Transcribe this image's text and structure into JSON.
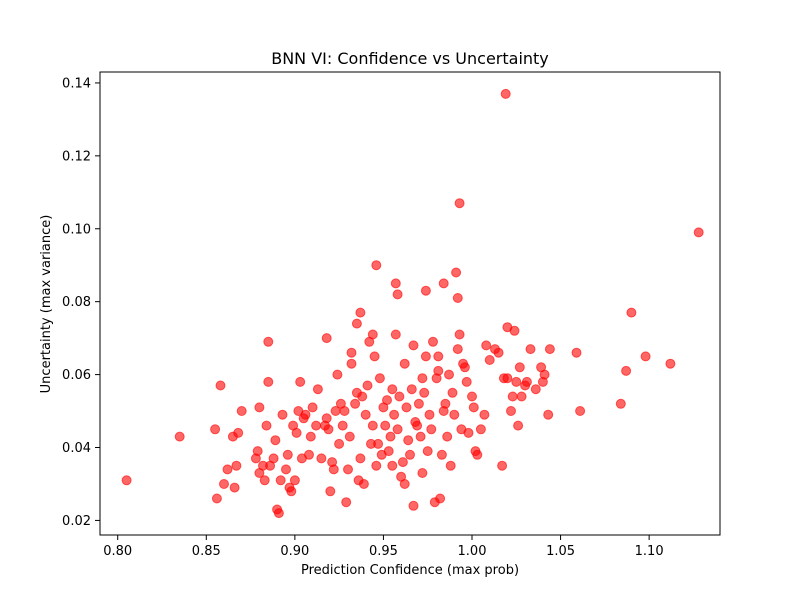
{
  "chart_data": {
    "type": "scatter",
    "title": "BNN VI: Confidence vs Uncertainty",
    "xlabel": "Prediction Confidence (max prob)",
    "ylabel": "Uncertainty (max variance)",
    "xlim": [
      0.79,
      1.14
    ],
    "ylim": [
      0.016,
      0.143
    ],
    "xticks": [
      0.8,
      0.85,
      0.9,
      0.95,
      1.0,
      1.05,
      1.1
    ],
    "xtick_labels": [
      "0.80",
      "0.85",
      "0.90",
      "0.95",
      "1.00",
      "1.05",
      "1.10"
    ],
    "yticks": [
      0.02,
      0.04,
      0.06,
      0.08,
      0.1,
      0.12,
      0.14
    ],
    "ytick_labels": [
      "0.02",
      "0.04",
      "0.06",
      "0.08",
      "0.10",
      "0.12",
      "0.14"
    ],
    "grid": false,
    "marker_color": "#ff0000",
    "marker_alpha": 0.6,
    "points": [
      [
        0.805,
        0.031
      ],
      [
        0.835,
        0.043
      ],
      [
        0.855,
        0.045
      ],
      [
        0.856,
        0.026
      ],
      [
        0.858,
        0.057
      ],
      [
        0.86,
        0.03
      ],
      [
        0.862,
        0.034
      ],
      [
        0.865,
        0.043
      ],
      [
        0.866,
        0.029
      ],
      [
        0.867,
        0.035
      ],
      [
        0.868,
        0.044
      ],
      [
        0.87,
        0.05
      ],
      [
        0.878,
        0.037
      ],
      [
        0.879,
        0.039
      ],
      [
        0.88,
        0.033
      ],
      [
        0.88,
        0.051
      ],
      [
        0.882,
        0.035
      ],
      [
        0.883,
        0.031
      ],
      [
        0.884,
        0.046
      ],
      [
        0.885,
        0.069
      ],
      [
        0.885,
        0.058
      ],
      [
        0.886,
        0.035
      ],
      [
        0.888,
        0.037
      ],
      [
        0.889,
        0.042
      ],
      [
        0.89,
        0.023
      ],
      [
        0.891,
        0.022
      ],
      [
        0.892,
        0.031
      ],
      [
        0.893,
        0.049
      ],
      [
        0.895,
        0.034
      ],
      [
        0.896,
        0.038
      ],
      [
        0.897,
        0.029
      ],
      [
        0.898,
        0.028
      ],
      [
        0.899,
        0.046
      ],
      [
        0.9,
        0.031
      ],
      [
        0.901,
        0.044
      ],
      [
        0.902,
        0.05
      ],
      [
        0.903,
        0.058
      ],
      [
        0.904,
        0.037
      ],
      [
        0.905,
        0.048
      ],
      [
        0.906,
        0.049
      ],
      [
        0.908,
        0.038
      ],
      [
        0.909,
        0.043
      ],
      [
        0.91,
        0.051
      ],
      [
        0.912,
        0.046
      ],
      [
        0.913,
        0.056
      ],
      [
        0.915,
        0.037
      ],
      [
        0.917,
        0.046
      ],
      [
        0.918,
        0.07
      ],
      [
        0.918,
        0.048
      ],
      [
        0.919,
        0.045
      ],
      [
        0.92,
        0.028
      ],
      [
        0.921,
        0.036
      ],
      [
        0.922,
        0.034
      ],
      [
        0.923,
        0.05
      ],
      [
        0.924,
        0.06
      ],
      [
        0.925,
        0.041
      ],
      [
        0.926,
        0.052
      ],
      [
        0.927,
        0.046
      ],
      [
        0.928,
        0.05
      ],
      [
        0.929,
        0.025
      ],
      [
        0.93,
        0.034
      ],
      [
        0.931,
        0.043
      ],
      [
        0.932,
        0.066
      ],
      [
        0.932,
        0.063
      ],
      [
        0.934,
        0.052
      ],
      [
        0.935,
        0.055
      ],
      [
        0.935,
        0.074
      ],
      [
        0.936,
        0.031
      ],
      [
        0.937,
        0.077
      ],
      [
        0.937,
        0.037
      ],
      [
        0.938,
        0.054
      ],
      [
        0.939,
        0.03
      ],
      [
        0.94,
        0.049
      ],
      [
        0.941,
        0.057
      ],
      [
        0.942,
        0.069
      ],
      [
        0.943,
        0.041
      ],
      [
        0.944,
        0.046
      ],
      [
        0.944,
        0.071
      ],
      [
        0.945,
        0.065
      ],
      [
        0.946,
        0.09
      ],
      [
        0.946,
        0.035
      ],
      [
        0.947,
        0.041
      ],
      [
        0.948,
        0.059
      ],
      [
        0.949,
        0.038
      ],
      [
        0.95,
        0.051
      ],
      [
        0.951,
        0.046
      ],
      [
        0.952,
        0.053
      ],
      [
        0.953,
        0.039
      ],
      [
        0.954,
        0.043
      ],
      [
        0.955,
        0.056
      ],
      [
        0.955,
        0.035
      ],
      [
        0.956,
        0.049
      ],
      [
        0.957,
        0.071
      ],
      [
        0.957,
        0.085
      ],
      [
        0.958,
        0.082
      ],
      [
        0.958,
        0.045
      ],
      [
        0.959,
        0.054
      ],
      [
        0.96,
        0.032
      ],
      [
        0.961,
        0.036
      ],
      [
        0.962,
        0.063
      ],
      [
        0.962,
        0.03
      ],
      [
        0.963,
        0.051
      ],
      [
        0.964,
        0.042
      ],
      [
        0.965,
        0.038
      ],
      [
        0.966,
        0.056
      ],
      [
        0.967,
        0.068
      ],
      [
        0.967,
        0.024
      ],
      [
        0.968,
        0.047
      ],
      [
        0.969,
        0.046
      ],
      [
        0.97,
        0.052
      ],
      [
        0.971,
        0.043
      ],
      [
        0.972,
        0.059
      ],
      [
        0.972,
        0.033
      ],
      [
        0.973,
        0.055
      ],
      [
        0.974,
        0.065
      ],
      [
        0.974,
        0.083
      ],
      [
        0.975,
        0.039
      ],
      [
        0.976,
        0.049
      ],
      [
        0.977,
        0.045
      ],
      [
        0.978,
        0.069
      ],
      [
        0.979,
        0.025
      ],
      [
        0.98,
        0.059
      ],
      [
        0.981,
        0.065
      ],
      [
        0.981,
        0.061
      ],
      [
        0.982,
        0.026
      ],
      [
        0.983,
        0.038
      ],
      [
        0.984,
        0.085
      ],
      [
        0.984,
        0.05
      ],
      [
        0.985,
        0.052
      ],
      [
        0.986,
        0.043
      ],
      [
        0.987,
        0.06
      ],
      [
        0.988,
        0.035
      ],
      [
        0.989,
        0.055
      ],
      [
        0.99,
        0.049
      ],
      [
        0.991,
        0.088
      ],
      [
        0.992,
        0.081
      ],
      [
        0.992,
        0.067
      ],
      [
        0.993,
        0.107
      ],
      [
        0.993,
        0.071
      ],
      [
        0.994,
        0.045
      ],
      [
        0.995,
        0.063
      ],
      [
        0.996,
        0.062
      ],
      [
        0.997,
        0.058
      ],
      [
        0.998,
        0.044
      ],
      [
        1.0,
        0.054
      ],
      [
        1.001,
        0.051
      ],
      [
        1.002,
        0.039
      ],
      [
        1.003,
        0.038
      ],
      [
        1.005,
        0.045
      ],
      [
        1.007,
        0.049
      ],
      [
        1.008,
        0.068
      ],
      [
        1.01,
        0.064
      ],
      [
        1.013,
        0.067
      ],
      [
        1.015,
        0.066
      ],
      [
        1.017,
        0.035
      ],
      [
        1.018,
        0.059
      ],
      [
        1.019,
        0.137
      ],
      [
        1.02,
        0.073
      ],
      [
        1.02,
        0.059
      ],
      [
        1.022,
        0.05
      ],
      [
        1.023,
        0.054
      ],
      [
        1.024,
        0.072
      ],
      [
        1.025,
        0.058
      ],
      [
        1.026,
        0.046
      ],
      [
        1.027,
        0.062
      ],
      [
        1.028,
        0.054
      ],
      [
        1.03,
        0.057
      ],
      [
        1.031,
        0.058
      ],
      [
        1.033,
        0.067
      ],
      [
        1.036,
        0.056
      ],
      [
        1.039,
        0.062
      ],
      [
        1.04,
        0.058
      ],
      [
        1.041,
        0.06
      ],
      [
        1.043,
        0.049
      ],
      [
        1.044,
        0.067
      ],
      [
        1.059,
        0.066
      ],
      [
        1.061,
        0.05
      ],
      [
        1.084,
        0.052
      ],
      [
        1.087,
        0.061
      ],
      [
        1.09,
        0.077
      ],
      [
        1.098,
        0.065
      ],
      [
        1.112,
        0.063
      ],
      [
        1.128,
        0.099
      ]
    ]
  }
}
